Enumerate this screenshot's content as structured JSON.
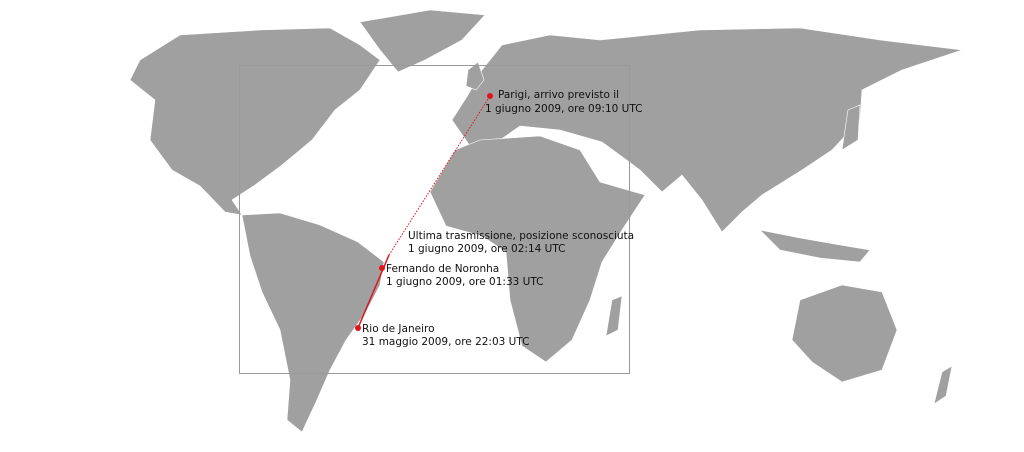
{
  "map": {
    "land_color": "#a0a0a0",
    "route_color": "#e0141c",
    "frame_color": "#999999",
    "places": [
      {
        "name": "Paris",
        "lat": 49.0,
        "lon": 2.5,
        "label1": "Parigi, arrivo previsto il",
        "label2": "1 giugno 2009, ore 09:10 UTC"
      },
      {
        "name": "Last transmission",
        "lat": 2.98,
        "lon": -30.59,
        "label1": "Ultima trasmissione, posizione sconosciuta",
        "label2": "1 giugno 2009, ore 02:14 UTC"
      },
      {
        "name": "Fernando de Noronha",
        "lat": -3.85,
        "lon": -32.42,
        "label1": "Fernando de Noronha",
        "label2": "1 giugno 2009, ore 01:33 UTC"
      },
      {
        "name": "Rio de Janeiro",
        "lat": -22.8,
        "lon": -43.25,
        "label1": "Rio de Janeiro",
        "label2": "31 maggio 2009, ore 22:03 UTC"
      }
    ]
  }
}
